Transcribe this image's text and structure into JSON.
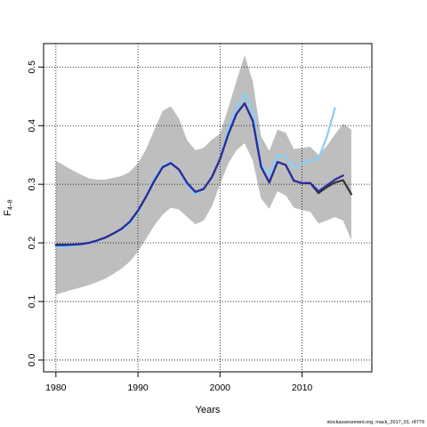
{
  "chart_data": {
    "type": "line",
    "xlabel": "Years",
    "ylabel": "F",
    "ylabel_subscript": "4–8",
    "xlim": [
      1978.5,
      2018.5
    ],
    "ylim": [
      -0.02,
      0.54
    ],
    "x_ticks": [
      1980,
      1990,
      2000,
      2010
    ],
    "y_ticks": [
      0.0,
      0.1,
      0.2,
      0.3,
      0.4,
      0.5
    ],
    "y_tick_labels": [
      "0.0",
      "0.1",
      "0.2",
      "0.3",
      "0.4",
      "0.5"
    ],
    "grid": "dotted at ticks",
    "band": {
      "fill": "#bebebe",
      "x": [
        1980,
        1981,
        1982,
        1983,
        1984,
        1985,
        1986,
        1987,
        1988,
        1989,
        1990,
        1991,
        1992,
        1993,
        1994,
        1995,
        1996,
        1997,
        1998,
        1999,
        2000,
        2001,
        2002,
        2003,
        2004,
        2005,
        2006,
        2007,
        2008,
        2009,
        2010,
        2011,
        2012,
        2013,
        2014,
        2015,
        2016
      ],
      "lower": [
        0.112,
        0.116,
        0.12,
        0.124,
        0.128,
        0.133,
        0.139,
        0.147,
        0.156,
        0.168,
        0.185,
        0.207,
        0.23,
        0.248,
        0.26,
        0.257,
        0.244,
        0.232,
        0.238,
        0.262,
        0.3,
        0.335,
        0.358,
        0.37,
        0.34,
        0.276,
        0.258,
        0.288,
        0.281,
        0.26,
        0.256,
        0.253,
        0.233,
        0.238,
        0.244,
        0.238,
        0.205
      ],
      "upper": [
        0.34,
        0.332,
        0.324,
        0.317,
        0.31,
        0.308,
        0.308,
        0.311,
        0.314,
        0.321,
        0.336,
        0.36,
        0.393,
        0.425,
        0.433,
        0.412,
        0.375,
        0.358,
        0.362,
        0.376,
        0.386,
        0.43,
        0.476,
        0.52,
        0.475,
        0.382,
        0.357,
        0.393,
        0.388,
        0.36,
        0.362,
        0.364,
        0.35,
        0.365,
        0.385,
        0.403,
        0.393
      ]
    },
    "series": [
      {
        "color": "#87cefa",
        "width": 2.2,
        "x": [
          1980,
          1981,
          1982,
          1983,
          1984,
          1985,
          1986,
          1987,
          1988,
          1989,
          1990,
          1991,
          1992,
          1993,
          1994,
          1995,
          1996,
          1997,
          1998,
          1999,
          2000,
          2001,
          2002,
          2003,
          2004,
          2005,
          2006,
          2007,
          2008,
          2009,
          2010,
          2011,
          2012,
          2013,
          2014
        ],
        "values": [
          0.193,
          0.193,
          0.195,
          0.197,
          0.199,
          0.203,
          0.209,
          0.216,
          0.222,
          0.233,
          0.252,
          0.279,
          0.31,
          0.332,
          0.338,
          0.323,
          0.298,
          0.283,
          0.293,
          0.312,
          0.343,
          0.395,
          0.428,
          0.455,
          0.424,
          0.336,
          0.316,
          0.35,
          0.347,
          0.328,
          0.336,
          0.34,
          0.344,
          0.38,
          0.43
        ]
      },
      {
        "color": "#333333",
        "width": 2.2,
        "x": [
          1980,
          1981,
          1982,
          1983,
          1984,
          1985,
          1986,
          1987,
          1988,
          1989,
          1990,
          1991,
          1992,
          1993,
          1994,
          1995,
          1996,
          1997,
          1998,
          1999,
          2000,
          2001,
          2002,
          2003,
          2004,
          2005,
          2006,
          2007,
          2008,
          2009,
          2010,
          2011,
          2012,
          2013,
          2014,
          2015,
          2016
        ],
        "values": [
          0.197,
          0.197,
          0.197,
          0.198,
          0.2,
          0.204,
          0.209,
          0.216,
          0.224,
          0.236,
          0.255,
          0.279,
          0.306,
          0.329,
          0.336,
          0.325,
          0.302,
          0.287,
          0.292,
          0.312,
          0.343,
          0.385,
          0.42,
          0.438,
          0.408,
          0.33,
          0.303,
          0.338,
          0.333,
          0.306,
          0.302,
          0.302,
          0.285,
          0.295,
          0.303,
          0.307,
          0.283
        ]
      },
      {
        "color": "#2b2ba0",
        "width": 2.2,
        "x": [
          1980,
          1981,
          1982,
          1983,
          1984,
          1985,
          1986,
          1987,
          1988,
          1989,
          1990,
          1991,
          1992,
          1993,
          1994,
          1995,
          1996,
          1997,
          1998,
          1999,
          2000,
          2001,
          2002,
          2003,
          2004,
          2005,
          2006,
          2007,
          2008,
          2009,
          2010,
          2011,
          2012,
          2013,
          2014,
          2015
        ],
        "values": [
          0.196,
          0.196,
          0.197,
          0.198,
          0.2,
          0.204,
          0.209,
          0.216,
          0.224,
          0.236,
          0.255,
          0.279,
          0.306,
          0.329,
          0.336,
          0.325,
          0.302,
          0.287,
          0.292,
          0.312,
          0.343,
          0.385,
          0.42,
          0.438,
          0.408,
          0.33,
          0.303,
          0.338,
          0.333,
          0.306,
          0.302,
          0.302,
          0.288,
          0.298,
          0.308,
          0.315
        ]
      }
    ]
  },
  "footer": {
    "caption": "stockassessment.org, mack_2017_01, r8779"
  }
}
